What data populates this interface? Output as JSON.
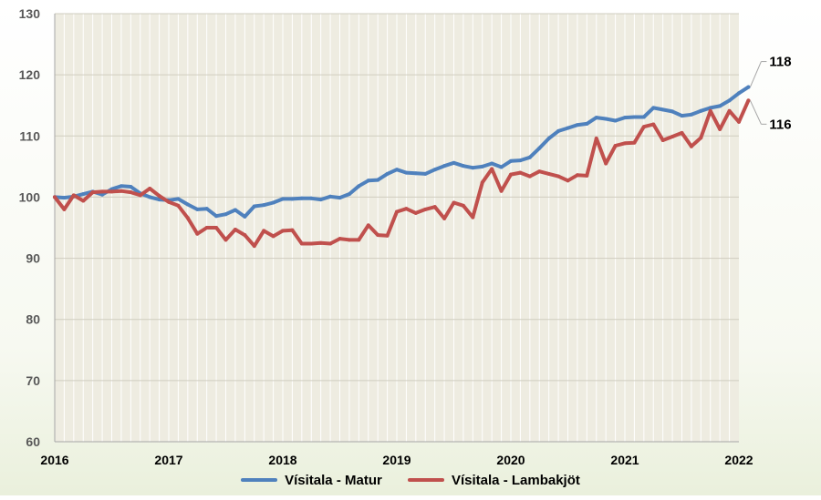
{
  "chart_data": {
    "type": "line",
    "title": "",
    "xlabel": "",
    "ylabel": "",
    "ylim": [
      60,
      130
    ],
    "yticks": [
      60,
      70,
      80,
      90,
      100,
      110,
      120,
      130
    ],
    "x_tick_labels": [
      "2016",
      "2017",
      "2018",
      "2019",
      "2020",
      "2021",
      "2022"
    ],
    "x_start": 2016,
    "months_per_year": 12,
    "grid": true,
    "legend_position": "bottom",
    "series": [
      {
        "name": "Vísitala - Matur",
        "color": "#4f81bd",
        "end_label": "118",
        "values": [
          100,
          99.9,
          100.1,
          100.5,
          100.9,
          100.4,
          101.3,
          101.8,
          101.7,
          100.6,
          100.0,
          99.6,
          99.5,
          99.7,
          98.8,
          98.0,
          98.1,
          96.9,
          97.2,
          97.9,
          96.8,
          98.5,
          98.7,
          99.1,
          99.7,
          99.7,
          99.8,
          99.8,
          99.6,
          100.1,
          99.9,
          100.5,
          101.8,
          102.7,
          102.8,
          103.8,
          104.5,
          104.0,
          103.9,
          103.8,
          104.5,
          105.1,
          105.6,
          105.1,
          104.8,
          105.0,
          105.5,
          104.9,
          105.9,
          106.0,
          106.5,
          108.0,
          109.6,
          110.8,
          111.3,
          111.8,
          112.0,
          113.0,
          112.8,
          112.5,
          113.0,
          113.1,
          113.1,
          114.6,
          114.3,
          114.0,
          113.3,
          113.5,
          114.1,
          114.6,
          114.9,
          115.8,
          117.0,
          118.0
        ]
      },
      {
        "name": "Vísitala - Lambakjöt",
        "color": "#c0504d",
        "end_label": "116",
        "values": [
          100,
          98.0,
          100.3,
          99.4,
          100.8,
          100.9,
          100.9,
          101.0,
          100.8,
          100.3,
          101.4,
          100.2,
          99.2,
          98.6,
          96.6,
          94.0,
          95.0,
          95.0,
          93.0,
          94.7,
          93.8,
          92.0,
          94.5,
          93.6,
          94.5,
          94.6,
          92.4,
          92.4,
          92.5,
          92.4,
          93.2,
          93.0,
          93.0,
          95.4,
          93.8,
          93.7,
          97.6,
          98.1,
          97.4,
          98.0,
          98.4,
          96.5,
          99.1,
          98.6,
          96.7,
          102.4,
          104.6,
          101.0,
          103.7,
          104.0,
          103.4,
          104.2,
          103.8,
          103.4,
          102.7,
          103.6,
          103.5,
          109.6,
          105.5,
          108.4,
          108.8,
          108.9,
          111.5,
          111.9,
          109.3,
          109.9,
          110.5,
          108.3,
          109.7,
          114.1,
          111.1,
          114.1,
          112.3,
          115.8
        ]
      }
    ]
  }
}
